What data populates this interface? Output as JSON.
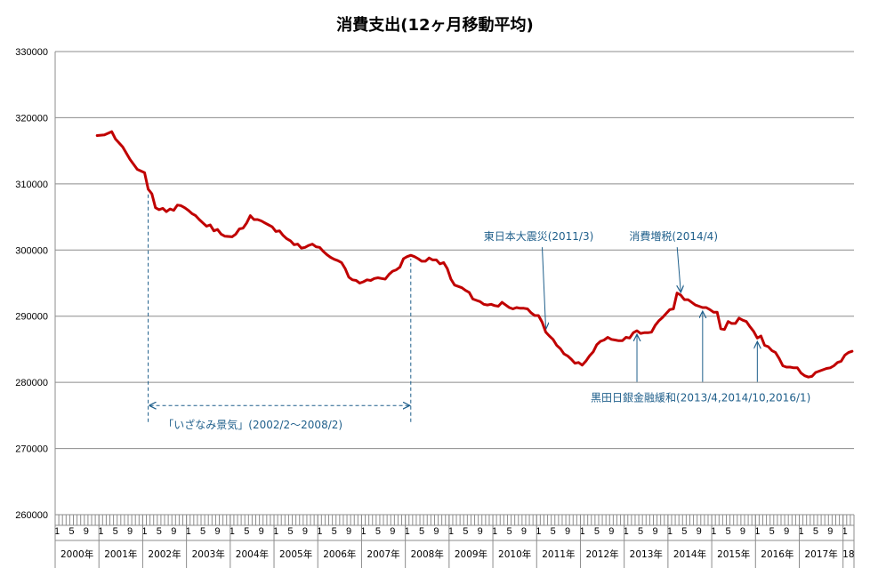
{
  "chart_data": {
    "type": "line",
    "title": "消費支出(12ヶ月移動平均)",
    "xlabel": "",
    "ylabel": "",
    "ylim": [
      260000,
      330000
    ],
    "yticks": [
      "260000",
      "270000",
      "280000",
      "290000",
      "300000",
      "310000",
      "320000",
      "330000"
    ],
    "grid": true,
    "legend": "none",
    "line_color": "#c00000",
    "annotation_color": "#1f5f8b",
    "month_labels": [
      "1",
      "5",
      "9"
    ],
    "years": [
      "2000年",
      "2001年",
      "2002年",
      "2003年",
      "2004年",
      "2005年",
      "2006年",
      "2007年",
      "2008年",
      "2009年",
      "2010年",
      "2011年",
      "2012年",
      "2013年",
      "2014年",
      "2015年",
      "2016年",
      "2017年",
      "18"
    ],
    "series": [
      {
        "points": [
          [
            "2000/12",
            317300
          ],
          [
            "2001/2",
            317400
          ],
          [
            "2001/4",
            317900
          ],
          [
            "2001/5",
            316800
          ],
          [
            "2001/7",
            315600
          ],
          [
            "2001/9",
            313700
          ],
          [
            "2001/11",
            312200
          ],
          [
            "2002/1",
            311700
          ],
          [
            "2002/2",
            309200
          ],
          [
            "2002/3",
            308500
          ],
          [
            "2002/4",
            306400
          ],
          [
            "2002/5",
            306100
          ],
          [
            "2002/6",
            306300
          ],
          [
            "2002/7",
            305800
          ],
          [
            "2002/8",
            306200
          ],
          [
            "2002/9",
            306000
          ],
          [
            "2002/10",
            306800
          ],
          [
            "2002/11",
            306700
          ],
          [
            "2002/12",
            306400
          ],
          [
            "2003/1",
            306000
          ],
          [
            "2003/2",
            305500
          ],
          [
            "2003/3",
            305200
          ],
          [
            "2003/4",
            304600
          ],
          [
            "2003/5",
            304100
          ],
          [
            "2003/6",
            303600
          ],
          [
            "2003/7",
            303800
          ],
          [
            "2003/8",
            302900
          ],
          [
            "2003/9",
            303100
          ],
          [
            "2003/10",
            302400
          ],
          [
            "2003/11",
            302100
          ],
          [
            "2004/1",
            302000
          ],
          [
            "2004/2",
            302400
          ],
          [
            "2004/3",
            303200
          ],
          [
            "2004/4",
            303300
          ],
          [
            "2004/5",
            304100
          ],
          [
            "2004/6",
            305200
          ],
          [
            "2004/7",
            304600
          ],
          [
            "2004/8",
            304600
          ],
          [
            "2004/9",
            304400
          ],
          [
            "2004/10",
            304100
          ],
          [
            "2004/11",
            303800
          ],
          [
            "2004/12",
            303500
          ],
          [
            "2005/1",
            302800
          ],
          [
            "2005/2",
            302900
          ],
          [
            "2005/3",
            302200
          ],
          [
            "2005/4",
            301700
          ],
          [
            "2005/5",
            301400
          ],
          [
            "2005/6",
            300800
          ],
          [
            "2005/7",
            300900
          ],
          [
            "2005/8",
            300300
          ],
          [
            "2005/9",
            300400
          ],
          [
            "2005/10",
            300700
          ],
          [
            "2005/11",
            300900
          ],
          [
            "2005/12",
            300500
          ],
          [
            "2006/1",
            300400
          ],
          [
            "2006/2",
            299800
          ],
          [
            "2006/3",
            299300
          ],
          [
            "2006/4",
            298900
          ],
          [
            "2006/5",
            298600
          ],
          [
            "2006/6",
            298400
          ],
          [
            "2006/7",
            298100
          ],
          [
            "2006/8",
            297200
          ],
          [
            "2006/9",
            295900
          ],
          [
            "2006/10",
            295500
          ],
          [
            "2006/11",
            295400
          ],
          [
            "2006/12",
            295000
          ],
          [
            "2007/1",
            295200
          ],
          [
            "2007/2",
            295500
          ],
          [
            "2007/3",
            295400
          ],
          [
            "2007/4",
            295700
          ],
          [
            "2007/5",
            295800
          ],
          [
            "2007/6",
            295700
          ],
          [
            "2007/7",
            295600
          ],
          [
            "2007/8",
            296300
          ],
          [
            "2007/9",
            296800
          ],
          [
            "2007/10",
            297000
          ],
          [
            "2007/11",
            297400
          ],
          [
            "2007/12",
            298700
          ],
          [
            "2008/1",
            299000
          ],
          [
            "2008/2",
            299200
          ],
          [
            "2008/3",
            299000
          ],
          [
            "2008/4",
            298700
          ],
          [
            "2008/5",
            298300
          ],
          [
            "2008/6",
            298300
          ],
          [
            "2008/7",
            298800
          ],
          [
            "2008/8",
            298500
          ],
          [
            "2008/9",
            298500
          ],
          [
            "2008/10",
            297900
          ],
          [
            "2008/11",
            298100
          ],
          [
            "2008/12",
            297200
          ],
          [
            "2009/1",
            295600
          ],
          [
            "2009/2",
            294700
          ],
          [
            "2009/3",
            294500
          ],
          [
            "2009/4",
            294300
          ],
          [
            "2009/5",
            293900
          ],
          [
            "2009/6",
            293600
          ],
          [
            "2009/7",
            292600
          ],
          [
            "2009/8",
            292400
          ],
          [
            "2009/9",
            292200
          ],
          [
            "2009/10",
            291800
          ],
          [
            "2009/11",
            291700
          ],
          [
            "2009/12",
            291800
          ],
          [
            "2010/1",
            291600
          ],
          [
            "2010/2",
            291500
          ],
          [
            "2010/3",
            292100
          ],
          [
            "2010/4",
            291700
          ],
          [
            "2010/5",
            291300
          ],
          [
            "2010/6",
            291100
          ],
          [
            "2010/7",
            291300
          ],
          [
            "2010/8",
            291200
          ],
          [
            "2010/9",
            291200
          ],
          [
            "2010/10",
            291100
          ],
          [
            "2010/11",
            290500
          ],
          [
            "2010/12",
            290100
          ],
          [
            "2011/1",
            290100
          ],
          [
            "2011/2",
            289100
          ],
          [
            "2011/3",
            287600
          ],
          [
            "2011/4",
            287000
          ],
          [
            "2011/5",
            286500
          ],
          [
            "2011/6",
            285600
          ],
          [
            "2011/7",
            285100
          ],
          [
            "2011/8",
            284300
          ],
          [
            "2011/9",
            284000
          ],
          [
            "2011/10",
            283500
          ],
          [
            "2011/11",
            282900
          ],
          [
            "2011/12",
            283000
          ],
          [
            "2012/1",
            282600
          ],
          [
            "2012/2",
            283200
          ],
          [
            "2012/3",
            284000
          ],
          [
            "2012/4",
            284600
          ],
          [
            "2012/5",
            285700
          ],
          [
            "2012/6",
            286200
          ],
          [
            "2012/7",
            286400
          ],
          [
            "2012/8",
            286800
          ],
          [
            "2012/9",
            286500
          ],
          [
            "2012/10",
            286400
          ],
          [
            "2012/11",
            286300
          ],
          [
            "2012/12",
            286300
          ],
          [
            "2013/1",
            286800
          ],
          [
            "2013/2",
            286700
          ],
          [
            "2013/3",
            287500
          ],
          [
            "2013/4",
            287800
          ],
          [
            "2013/5",
            287400
          ],
          [
            "2013/6",
            287500
          ],
          [
            "2013/7",
            287500
          ],
          [
            "2013/8",
            287600
          ],
          [
            "2013/9",
            288600
          ],
          [
            "2013/10",
            289300
          ],
          [
            "2013/11",
            289800
          ],
          [
            "2013/12",
            290400
          ],
          [
            "2014/1",
            291000
          ],
          [
            "2014/2",
            291100
          ],
          [
            "2014/3",
            293500
          ],
          [
            "2014/4",
            293200
          ],
          [
            "2014/5",
            292500
          ],
          [
            "2014/6",
            292500
          ],
          [
            "2014/7",
            292100
          ],
          [
            "2014/8",
            291700
          ],
          [
            "2014/9",
            291500
          ],
          [
            "2014/10",
            291300
          ],
          [
            "2014/11",
            291300
          ],
          [
            "2014/12",
            291000
          ],
          [
            "2015/1",
            290600
          ],
          [
            "2015/2",
            290600
          ],
          [
            "2015/3",
            288100
          ],
          [
            "2015/4",
            288000
          ],
          [
            "2015/5",
            289200
          ],
          [
            "2015/6",
            288900
          ],
          [
            "2015/7",
            288900
          ],
          [
            "2015/8",
            289700
          ],
          [
            "2015/9",
            289400
          ],
          [
            "2015/10",
            289200
          ],
          [
            "2015/11",
            288400
          ],
          [
            "2015/12",
            287700
          ],
          [
            "2016/1",
            286700
          ],
          [
            "2016/2",
            287000
          ],
          [
            "2016/3",
            285600
          ],
          [
            "2016/4",
            285400
          ],
          [
            "2016/5",
            284800
          ],
          [
            "2016/6",
            284500
          ],
          [
            "2016/7",
            283600
          ],
          [
            "2016/8",
            282500
          ],
          [
            "2016/9",
            282300
          ],
          [
            "2016/10",
            282300
          ],
          [
            "2016/11",
            282200
          ],
          [
            "2016/12",
            282200
          ],
          [
            "2017/1",
            281400
          ],
          [
            "2017/2",
            281000
          ],
          [
            "2017/3",
            280800
          ],
          [
            "2017/4",
            280900
          ],
          [
            "2017/5",
            281500
          ],
          [
            "2017/6",
            281700
          ],
          [
            "2017/7",
            281900
          ],
          [
            "2017/8",
            282100
          ],
          [
            "2017/9",
            282200
          ],
          [
            "2017/10",
            282500
          ],
          [
            "2017/11",
            283000
          ],
          [
            "2017/12",
            283200
          ],
          [
            "2018/1",
            284100
          ],
          [
            "2018/2",
            284500
          ],
          [
            "2018/3",
            284700
          ]
        ]
      }
    ],
    "annotations": [
      {
        "text": "「いざなみ景気」(2002/2〜2008/2)",
        "type": "range",
        "from": "2002/2",
        "to": "2008/2",
        "y": 276500,
        "v_from_y": 274000,
        "v_to_y": 308500
      },
      {
        "text": "東日本大震災(2011/3)",
        "type": "arrow_down",
        "at": "2011/3",
        "label_y": 301500
      },
      {
        "text": "消費増税(2014/4)",
        "type": "arrow_down",
        "at": "2014/4",
        "label_y": 301500
      },
      {
        "text": "黒田日銀金融緩和(2013/4,2014/10,2016/1)",
        "type": "arrows_up",
        "at": [
          "2013/4",
          "2014/10",
          "2016/1"
        ],
        "label_y": 279000
      }
    ]
  }
}
